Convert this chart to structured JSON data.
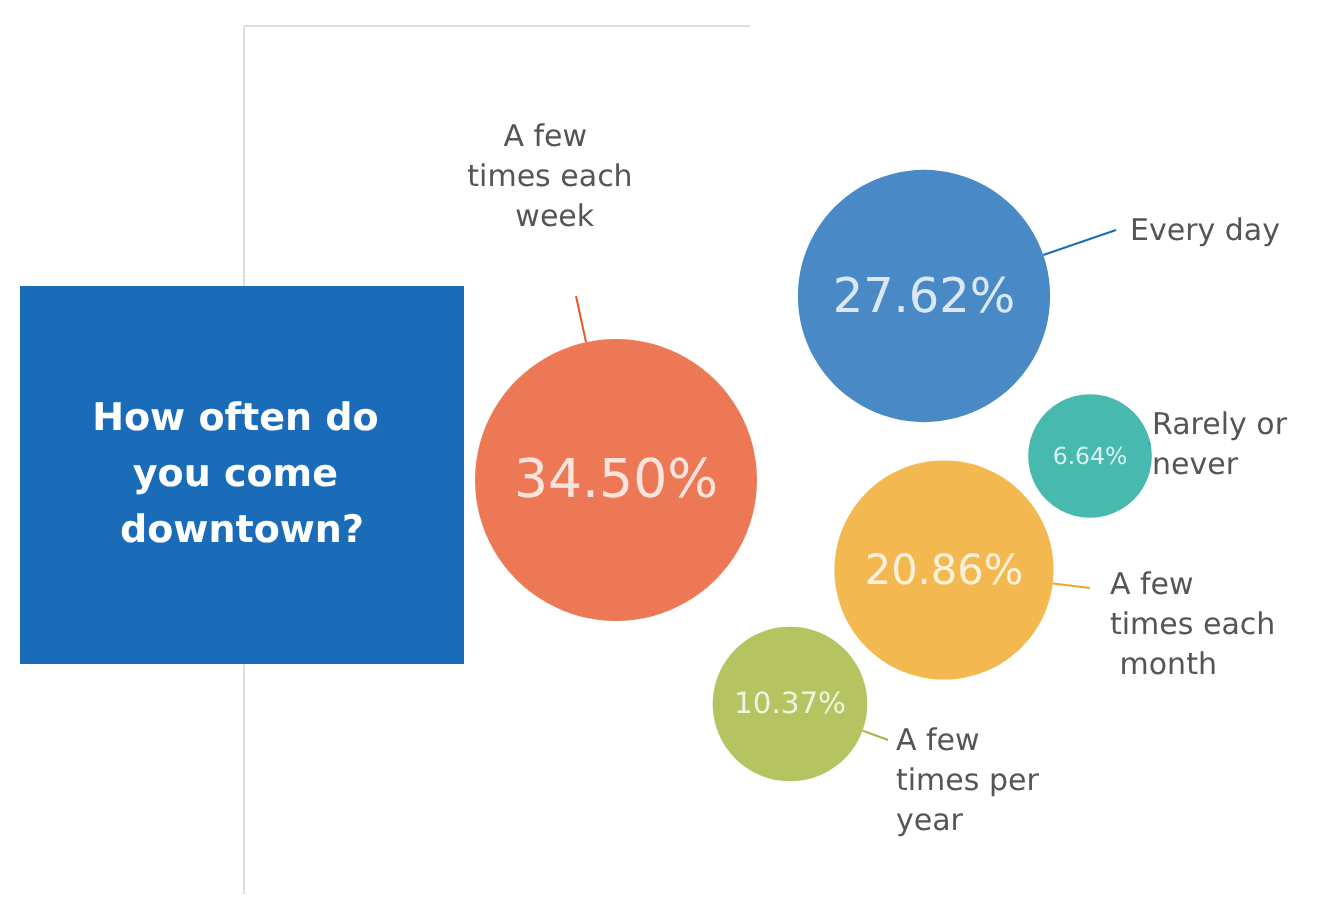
{
  "chart_data": {
    "type": "other",
    "title": "How often do you come downtown?",
    "categories": [
      "A few times each week",
      "Every day",
      "Rarely or never",
      "A few times each month",
      "A few times per year"
    ],
    "values": [
      34.5,
      27.62,
      6.64,
      20.86,
      10.37
    ],
    "colors": [
      "#e8562a",
      "#1a6bb8",
      "#1aa89a",
      "#f0a824",
      "#a2b43a"
    ],
    "value_labels": [
      "34.50%",
      "27.62%",
      "6.64%",
      "20.86%",
      "10.37%"
    ]
  }
}
